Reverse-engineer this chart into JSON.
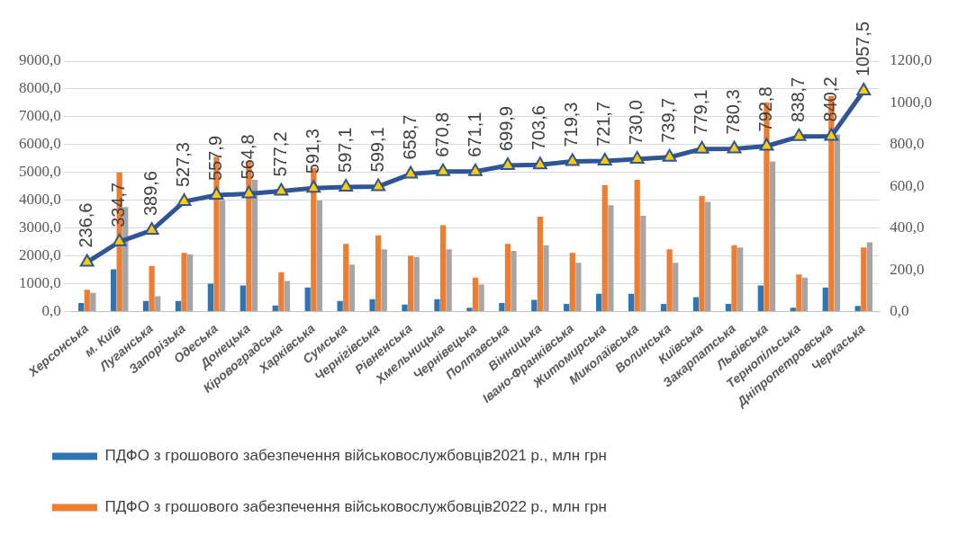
{
  "chart_data": {
    "type": "bar",
    "categories": [
      "Херсонська",
      "м. Київ",
      "Луганська",
      "Запорізька",
      "Одеська",
      "Донецька",
      "Кіровоградська",
      "Харківська",
      "Сумська",
      "Чернігівська",
      "Рівненська",
      "Хмельницька",
      "Чернівецька",
      "Полтавська",
      "Вінницька",
      "Івано-Франківська",
      "Житомирська",
      "Миколаївська",
      "Волинська",
      "Київська",
      "Закарпатська",
      "Львівська",
      "Тернопільська",
      "Дніпропетровська",
      "Черкаська"
    ],
    "series": [
      {
        "name": "ПДФО з грошового забезпечення військовослужбовців2021 р., млн грн",
        "color": "#2e75b6",
        "values": [
          310,
          1520,
          380,
          380,
          1000,
          940,
          220,
          860,
          380,
          440,
          250,
          440,
          140,
          310,
          420,
          270,
          640,
          640,
          270,
          520,
          270,
          940,
          140,
          860,
          200
        ]
      },
      {
        "name": "ПДФО з грошового забезпечення військовослужбовців2022 р., млн грн",
        "color": "#ed7d31",
        "values": [
          780,
          5000,
          1640,
          2110,
          5560,
          5400,
          1410,
          5160,
          2430,
          2740,
          2000,
          3100,
          1220,
          2430,
          3410,
          2110,
          4540,
          4730,
          2240,
          4150,
          2380,
          7510,
          1330,
          7750,
          2300
        ]
      },
      {
        "color": "#a5a5a5",
        "values": [
          670,
          3760,
          550,
          2050,
          4000,
          4730,
          1100,
          3990,
          1690,
          2240,
          1960,
          2240,
          970,
          2180,
          2380,
          1750,
          3820,
          3440,
          1750,
          3940,
          2300,
          5400,
          1220,
          6370,
          2490
        ]
      },
      {
        "type": "line",
        "axis": "y2",
        "color": "#2f5597",
        "marker": "triangle",
        "values": [
          236.6,
          334.7,
          389.6,
          527.3,
          557.9,
          564.8,
          577.2,
          591.3,
          597.1,
          599.1,
          658.7,
          670.8,
          671.1,
          699.9,
          703.6,
          719.3,
          721.7,
          730.0,
          739.7,
          779.1,
          780.3,
          792.8,
          838.7,
          840.2,
          1057.5
        ],
        "value_labels": [
          "236,6",
          "334,7",
          "389,6",
          "527,3",
          "557,9",
          "564,8",
          "577,2",
          "591,3",
          "597,1",
          "599,1",
          "658,7",
          "670,8",
          "671,1",
          "699,9",
          "703,6",
          "719,3",
          "721,7",
          "730,0",
          "739,7",
          "779,1",
          "780,3",
          "792,8",
          "838,7",
          "840,2",
          "1057,5"
        ]
      }
    ],
    "ylim": [
      0,
      9000
    ],
    "yticks": [
      {
        "value": 0,
        "label": "0,0"
      },
      {
        "value": 1000,
        "label": "1000,0"
      },
      {
        "value": 2000,
        "label": "2000,0"
      },
      {
        "value": 3000,
        "label": "3000,0"
      },
      {
        "value": 4000,
        "label": "4000,0"
      },
      {
        "value": 5000,
        "label": "5000,0"
      },
      {
        "value": 6000,
        "label": "6000,0"
      },
      {
        "value": 7000,
        "label": "7000,0"
      },
      {
        "value": 8000,
        "label": "8000,0"
      },
      {
        "value": 9000,
        "label": "9000,0"
      }
    ],
    "y2lim": [
      0,
      1200
    ],
    "y2ticks": [
      {
        "value": 0,
        "label": "0,0"
      },
      {
        "value": 200,
        "label": "200,0"
      },
      {
        "value": 400,
        "label": "400,0"
      },
      {
        "value": 600,
        "label": "600,0"
      },
      {
        "value": 800,
        "label": "800,0"
      },
      {
        "value": 1000,
        "label": "1000,0"
      },
      {
        "value": 1200,
        "label": "1200,0"
      }
    ],
    "grid": "y",
    "legend": "bottom"
  }
}
